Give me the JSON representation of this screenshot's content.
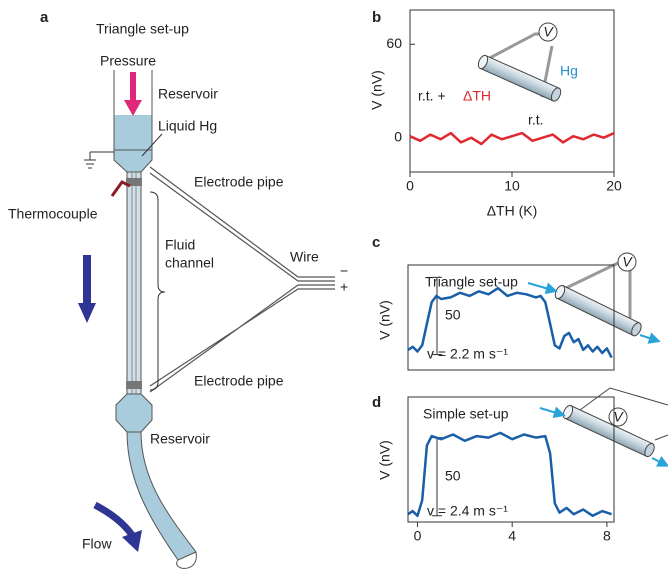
{
  "panel_a": {
    "letter": "a",
    "title": "Triangle set-up",
    "pressure": "Pressure",
    "reservoir_top": "Reservoir",
    "liquid": "Liquid Hg",
    "electrode_top": "Electrode pipe",
    "thermocouple": "Thermocouple",
    "channel": [
      "Fluid",
      "channel"
    ],
    "wire": "Wire",
    "minus": "−",
    "plus": "+",
    "electrode_bottom": "Electrode pipe",
    "reservoir_bottom": "Reservoir",
    "flow": "Flow"
  },
  "chart_data": [
    {
      "type": "line",
      "letter": "b",
      "y_label": "V (nV)",
      "x_label": "ΔTH (K)",
      "meter": "V",
      "hg": "Hg",
      "hot_end": [
        "r.t. +",
        "ΔTH"
      ],
      "cold_end": "r.t.",
      "color": "#e0282e",
      "x": [
        0,
        1,
        2,
        3,
        4,
        5,
        6,
        7,
        8,
        9,
        10,
        11,
        12,
        13,
        14,
        15,
        16,
        17,
        18,
        19,
        20
      ],
      "values": [
        1,
        -2,
        2,
        -1,
        3,
        -3,
        0,
        -4,
        2,
        -1,
        1,
        3,
        -2,
        0,
        2,
        -3,
        1,
        -1,
        2,
        0,
        3
      ],
      "xlim": [
        0,
        20
      ],
      "ylim": [
        -22,
        82
      ],
      "xticks": [
        0,
        10,
        20
      ],
      "yticks": [
        0,
        60
      ]
    },
    {
      "type": "line",
      "letter": "c",
      "y_label": "V (nV)",
      "title": "Triangle set-up",
      "speed": "v = 2.2 m s⁻¹",
      "meter": "V",
      "scale_bar": 50,
      "color": "#1a5fa8",
      "x": [
        -0.4,
        -0.2,
        0,
        0.2,
        0.4,
        0.6,
        0.8,
        1,
        1.4,
        1.8,
        2.2,
        2.6,
        3,
        3.4,
        3.8,
        4.2,
        4.6,
        5,
        5.2,
        5.4,
        5.6,
        5.8,
        6,
        6.2,
        6.4,
        6.6,
        6.8,
        7,
        7.2,
        7.4,
        7.6,
        7.8,
        8,
        8.2
      ],
      "values": [
        3,
        5,
        2,
        6,
        20,
        34,
        38,
        36,
        37,
        40,
        38,
        41,
        39,
        43,
        38,
        40,
        39,
        37,
        38,
        34,
        20,
        6,
        4,
        12,
        14,
        8,
        10,
        3,
        6,
        2,
        5,
        1,
        4,
        -2
      ],
      "xlim": [
        -0.4,
        8.3
      ],
      "ylim": [
        -10,
        58
      ]
    },
    {
      "type": "line",
      "letter": "d",
      "y_label": "V (nV)",
      "title": "Simple set-up",
      "speed": "v = 2.4 m s⁻¹",
      "meter": "V",
      "scale_bar": 50,
      "color": "#1a5fa8",
      "x": [
        -0.4,
        -0.2,
        0,
        0.2,
        0.4,
        0.6,
        1,
        1.5,
        2,
        2.5,
        3,
        3.5,
        4,
        4.5,
        5,
        5.4,
        5.6,
        5.8,
        6,
        6.3,
        6.6,
        7,
        7.4,
        7.8,
        8.2
      ],
      "values": [
        1,
        3,
        0,
        10,
        45,
        51,
        49,
        52,
        48,
        51,
        50,
        53,
        49,
        52,
        50,
        51,
        40,
        8,
        2,
        5,
        1,
        4,
        0,
        3,
        1
      ],
      "xlim": [
        -0.4,
        8.3
      ],
      "ylim": [
        -4,
        76
      ],
      "xticks": [
        0,
        4,
        8
      ]
    }
  ]
}
